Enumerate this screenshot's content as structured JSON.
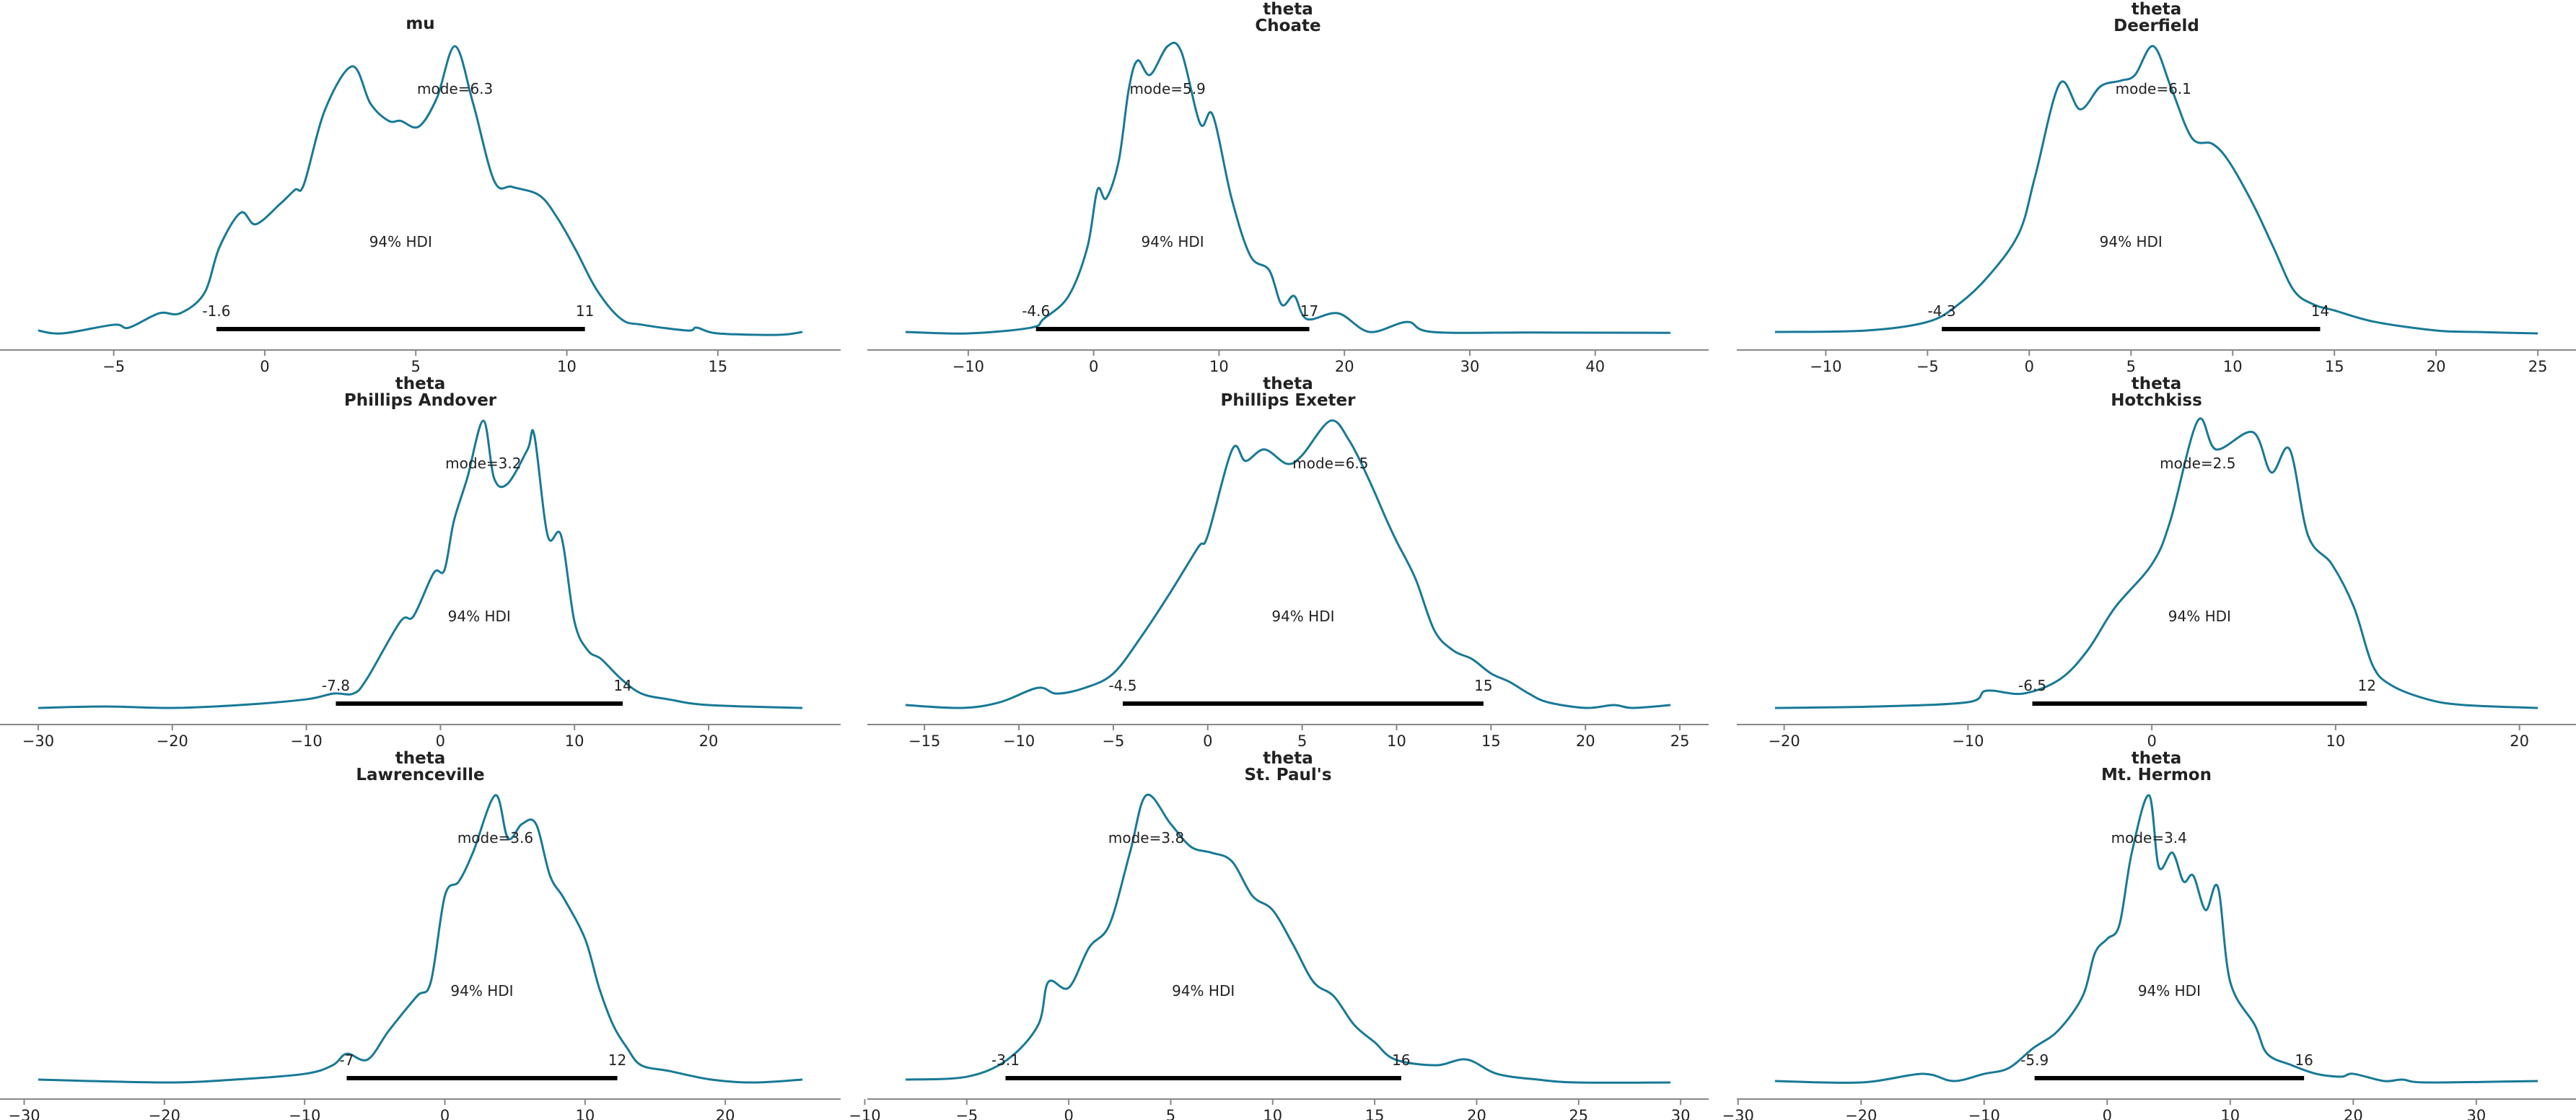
{
  "chart_data": [
    {
      "type": "line",
      "title": [
        "mu"
      ],
      "mode_label": "mode=6.3",
      "mode": 6.3,
      "hdi_label": "94% HDI",
      "hdi": [
        -1.6,
        10.6
      ],
      "hdi_labels": [
        "-1.6",
        "11"
      ],
      "ticks": [
        -5,
        0,
        5,
        10,
        15
      ],
      "tick_labels": [
        "−5",
        "0",
        "5",
        "10",
        "15"
      ],
      "x": [
        -7.5,
        -6.7,
        -5,
        -4.5,
        -3.5,
        -2.8,
        -2,
        -1.5,
        -0.8,
        -0.3,
        0.5,
        1,
        1.3,
        2,
        2.9,
        3.5,
        4.1,
        4.5,
        5.1,
        5.7,
        6.3,
        6.9,
        7.6,
        8.2,
        9.1,
        9.7,
        10.3,
        11,
        11.8,
        12.5,
        14,
        14.3,
        15,
        17,
        17.8
      ],
      "density": [
        0.01,
        0,
        0.03,
        0.02,
        0.07,
        0.07,
        0.14,
        0.3,
        0.42,
        0.38,
        0.45,
        0.5,
        0.52,
        0.78,
        0.93,
        0.8,
        0.74,
        0.74,
        0.72,
        0.82,
        1,
        0.8,
        0.53,
        0.51,
        0.48,
        0.4,
        0.29,
        0.15,
        0.05,
        0.03,
        0.01,
        0.02,
        0,
        -0.005,
        0.005
      ]
    },
    {
      "type": "line",
      "title": [
        "theta",
        "Choate"
      ],
      "mode_label": "mode=5.9",
      "mode": 5.9,
      "hdi_label": "94% HDI",
      "hdi": [
        -4.6,
        17.2
      ],
      "hdi_labels": [
        "-4.6",
        "17"
      ],
      "ticks": [
        -10,
        0,
        10,
        20,
        30,
        40
      ],
      "tick_labels": [
        "−10",
        "0",
        "10",
        "20",
        "30",
        "40"
      ],
      "x": [
        -15,
        -10,
        -5,
        -4,
        -2,
        -0.5,
        0.3,
        1,
        2,
        2.8,
        3.5,
        4.5,
        5.9,
        7,
        8.5,
        9.5,
        11,
        12.5,
        14,
        15,
        16,
        17,
        19.5,
        22,
        25,
        27,
        35,
        46
      ],
      "density": [
        0.005,
        0,
        0.02,
        0.05,
        0.13,
        0.3,
        0.5,
        0.47,
        0.6,
        0.85,
        0.95,
        0.9,
        1,
        0.98,
        0.73,
        0.76,
        0.47,
        0.27,
        0.22,
        0.1,
        0.13,
        0.05,
        0.07,
        0.005,
        0.04,
        0.005,
        0.003,
        0.002
      ]
    },
    {
      "type": "line",
      "title": [
        "theta",
        "Deerfield"
      ],
      "mode_label": "mode=6.1",
      "mode": 6.1,
      "hdi_label": "94% HDI",
      "hdi": [
        -4.3,
        14.3
      ],
      "hdi_labels": [
        "-4.3",
        "14"
      ],
      "ticks": [
        -10,
        -5,
        0,
        5,
        10,
        15,
        20,
        25
      ],
      "tick_labels": [
        "−10",
        "−5",
        "0",
        "5",
        "10",
        "15",
        "20",
        "25"
      ],
      "x": [
        -12.5,
        -8,
        -5,
        -3.5,
        -2,
        -0.5,
        0.3,
        1.5,
        2.5,
        3.5,
        4.5,
        5.2,
        6.1,
        7,
        8,
        9,
        9.8,
        11,
        12,
        13,
        14,
        15,
        17,
        20,
        22,
        25
      ],
      "density": [
        0.005,
        0.01,
        0.04,
        0.1,
        0.2,
        0.35,
        0.55,
        0.87,
        0.78,
        0.86,
        0.88,
        0.9,
        1,
        0.85,
        0.68,
        0.66,
        0.6,
        0.45,
        0.3,
        0.15,
        0.1,
        0.08,
        0.04,
        0.01,
        0.005,
        0
      ]
    },
    {
      "type": "line",
      "title": [
        "theta",
        "Phillips Andover"
      ],
      "mode_label": "mode=3.2",
      "mode": 3.2,
      "hdi_label": "94% HDI",
      "hdi": [
        -7.8,
        13.6
      ],
      "hdi_labels": [
        "-7.8",
        "14"
      ],
      "ticks": [
        -30,
        -20,
        -10,
        0,
        10,
        20
      ],
      "tick_labels": [
        "−30",
        "−20",
        "−10",
        "0",
        "10",
        "20"
      ],
      "x": [
        -30,
        -25,
        -20,
        -15,
        -10,
        -8,
        -6.5,
        -5.5,
        -3,
        -2,
        -0.5,
        0.3,
        1,
        2,
        3.2,
        4,
        5,
        6.5,
        7,
        8,
        9,
        10,
        11,
        12,
        13.5,
        15,
        17,
        20,
        27
      ],
      "density": [
        0,
        0.005,
        0,
        0.01,
        0.03,
        0.05,
        0.05,
        0.1,
        0.3,
        0.32,
        0.47,
        0.48,
        0.65,
        0.8,
        1,
        0.8,
        0.78,
        0.9,
        0.95,
        0.6,
        0.6,
        0.3,
        0.2,
        0.17,
        0.1,
        0.05,
        0.03,
        0.01,
        0
      ]
    },
    {
      "type": "line",
      "title": [
        "theta",
        "Phillips Exeter"
      ],
      "mode_label": "mode=6.5",
      "mode": 6.5,
      "hdi_label": "94% HDI",
      "hdi": [
        -4.5,
        14.6
      ],
      "hdi_labels": [
        "-4.5",
        "15"
      ],
      "ticks": [
        -15,
        -10,
        -5,
        0,
        5,
        10,
        15,
        20,
        25
      ],
      "tick_labels": [
        "−15",
        "−10",
        "−5",
        "0",
        "5",
        "10",
        "15",
        "20",
        "25"
      ],
      "x": [
        -16,
        -13,
        -11,
        -9,
        -8,
        -6.5,
        -5,
        -3.5,
        -2,
        -0.5,
        0,
        1.3,
        2,
        3,
        4.2,
        5,
        6.5,
        7.5,
        8.5,
        9.5,
        10,
        11,
        12,
        13,
        14,
        15,
        16,
        17,
        18,
        20,
        21.5,
        22.5,
        24.5
      ],
      "density": [
        0.01,
        0,
        0.02,
        0.07,
        0.05,
        0.07,
        0.12,
        0.25,
        0.4,
        0.56,
        0.6,
        0.9,
        0.86,
        0.9,
        0.85,
        0.88,
        1,
        0.93,
        0.8,
        0.65,
        0.58,
        0.45,
        0.27,
        0.2,
        0.17,
        0.12,
        0.09,
        0.05,
        0.02,
        0,
        0.01,
        0,
        0.01
      ]
    },
    {
      "type": "line",
      "title": [
        "theta",
        "Hotchkiss"
      ],
      "mode_label": "mode=2.5",
      "mode": 2.5,
      "hdi_label": "94% HDI",
      "hdi": [
        -6.5,
        11.7
      ],
      "hdi_labels": [
        "-6.5",
        "12"
      ],
      "ticks": [
        -20,
        -10,
        0,
        10,
        20
      ],
      "tick_labels": [
        "−20",
        "−10",
        "0",
        "10",
        "20"
      ],
      "x": [
        -20.5,
        -15,
        -10,
        -9,
        -7,
        -5,
        -3.5,
        -2,
        0,
        1,
        2.5,
        3.5,
        5.5,
        6.5,
        7.5,
        8.5,
        9.8,
        11,
        12,
        13,
        15,
        17,
        21
      ],
      "density": [
        0,
        0.005,
        0.02,
        0.06,
        0.05,
        0.1,
        0.2,
        0.35,
        0.5,
        0.65,
        1,
        0.9,
        0.96,
        0.82,
        0.9,
        0.6,
        0.5,
        0.35,
        0.15,
        0.08,
        0.03,
        0.01,
        0
      ]
    },
    {
      "type": "line",
      "title": [
        "theta",
        "Lawrenceville"
      ],
      "mode_label": "mode=3.6",
      "mode": 3.6,
      "hdi_label": "94% HDI",
      "hdi": [
        -7,
        12.3
      ],
      "hdi_labels": [
        "-7",
        "12"
      ],
      "ticks": [
        -30,
        -20,
        -10,
        0,
        10,
        20
      ],
      "tick_labels": [
        "−30",
        "−20",
        "−10",
        "0",
        "10",
        "20"
      ],
      "x": [
        -29,
        -20,
        -15,
        -10,
        -8,
        -7,
        -5.5,
        -4,
        -2,
        -1,
        0,
        1,
        2,
        3.6,
        4.5,
        5.5,
        6.5,
        7.5,
        8.5,
        10,
        11,
        12,
        13,
        14,
        16,
        19,
        22,
        25.5
      ],
      "density": [
        0.01,
        0,
        0.01,
        0.03,
        0.06,
        0.1,
        0.08,
        0.18,
        0.3,
        0.35,
        0.65,
        0.7,
        0.8,
        1,
        0.85,
        0.9,
        0.9,
        0.72,
        0.64,
        0.5,
        0.33,
        0.2,
        0.12,
        0.06,
        0.04,
        0.01,
        0,
        0.01
      ]
    },
    {
      "type": "line",
      "title": [
        "theta",
        "St. Paul's"
      ],
      "mode_label": "mode=3.8",
      "mode": 3.8,
      "hdi_label": "94% HDI",
      "hdi": [
        -3.1,
        16.3
      ],
      "hdi_labels": [
        "-3.1",
        "16"
      ],
      "ticks": [
        -10,
        -5,
        0,
        5,
        10,
        15,
        20,
        25,
        30
      ],
      "tick_labels": [
        "−10",
        "−5",
        "0",
        "5",
        "10",
        "15",
        "20",
        "25",
        "30"
      ],
      "x": [
        -8,
        -5,
        -3,
        -1.5,
        -1,
        0,
        1,
        2,
        3,
        3.8,
        5,
        6,
        7,
        8,
        9,
        10,
        11,
        12,
        13,
        14,
        15,
        16,
        18,
        19.5,
        21,
        23,
        25,
        29.5
      ],
      "density": [
        0.01,
        0.02,
        0.08,
        0.2,
        0.35,
        0.33,
        0.47,
        0.55,
        0.8,
        1,
        0.9,
        0.82,
        0.8,
        0.77,
        0.65,
        0.6,
        0.48,
        0.35,
        0.3,
        0.2,
        0.14,
        0.08,
        0.06,
        0.08,
        0.03,
        0.01,
        0,
        0
      ]
    },
    {
      "type": "line",
      "title": [
        "theta",
        "Mt. Hermon"
      ],
      "mode_label": "mode=3.4",
      "mode": 3.4,
      "hdi_label": "94% HDI",
      "hdi": [
        -5.9,
        16
      ],
      "hdi_labels": [
        "-5.9",
        "16"
      ],
      "ticks": [
        -30,
        -20,
        -10,
        0,
        10,
        20,
        30
      ],
      "tick_labels": [
        "−30",
        "−20",
        "−10",
        "0",
        "10",
        "20",
        "30"
      ],
      "x": [
        -27,
        -20,
        -15,
        -12.5,
        -10,
        -8,
        -6,
        -4,
        -2,
        -1,
        0,
        1,
        2,
        3.4,
        4.2,
        5.3,
        6.2,
        7,
        8,
        9,
        10,
        12,
        13,
        15,
        17,
        19,
        20,
        22.5,
        24,
        26,
        35
      ],
      "density": [
        0.005,
        0,
        0.03,
        0.005,
        0.03,
        0.05,
        0.12,
        0.18,
        0.3,
        0.45,
        0.5,
        0.55,
        0.8,
        1,
        0.75,
        0.8,
        0.7,
        0.72,
        0.6,
        0.68,
        0.35,
        0.2,
        0.1,
        0.06,
        0.03,
        0.02,
        0.03,
        0.005,
        0.01,
        0,
        0.005
      ]
    }
  ],
  "colors": {
    "curve": "#187996",
    "hdi": "#000000",
    "axis": "#888888",
    "text": "#222222"
  }
}
